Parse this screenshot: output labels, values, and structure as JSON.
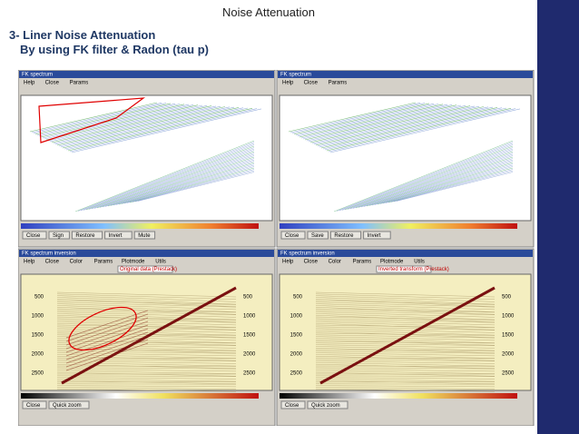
{
  "header": {
    "title": "Noise Attenuation"
  },
  "heading": {
    "line1": "3- Liner Noise Attenuation",
    "line2": "By using FK filter & Radon (tau p)"
  },
  "panels": [
    {
      "window_title": "FK spectrum",
      "menu": [
        "Help",
        "Close",
        "Params"
      ],
      "buttons": [
        "Close",
        "Sign",
        "Restore",
        "Invert",
        "Mute"
      ]
    },
    {
      "window_title": "FK spectrum",
      "menu": [
        "Help",
        "Close",
        "Params"
      ],
      "buttons": [
        "Close",
        "Save",
        "Restore",
        "Invert"
      ]
    },
    {
      "window_title": "FK spectrum inversion",
      "menu": [
        "Help",
        "Close",
        "Color",
        "Params",
        "Plotmode",
        "Utils"
      ],
      "caption": "Original data (Prestack)",
      "yticks": [
        "500",
        "1000",
        "1500",
        "2000",
        "2500"
      ],
      "buttons": [
        "Close",
        "Quick zoom"
      ]
    },
    {
      "window_title": "FK spectrum inversion",
      "menu": [
        "Help",
        "Close",
        "Color",
        "Params",
        "Plotmode",
        "Utils"
      ],
      "caption": "Inverted transform (Prestack)",
      "yticks": [
        "500",
        "1000",
        "1500",
        "2000",
        "2500"
      ],
      "buttons": [
        "Close",
        "Quick zoom"
      ]
    }
  ]
}
